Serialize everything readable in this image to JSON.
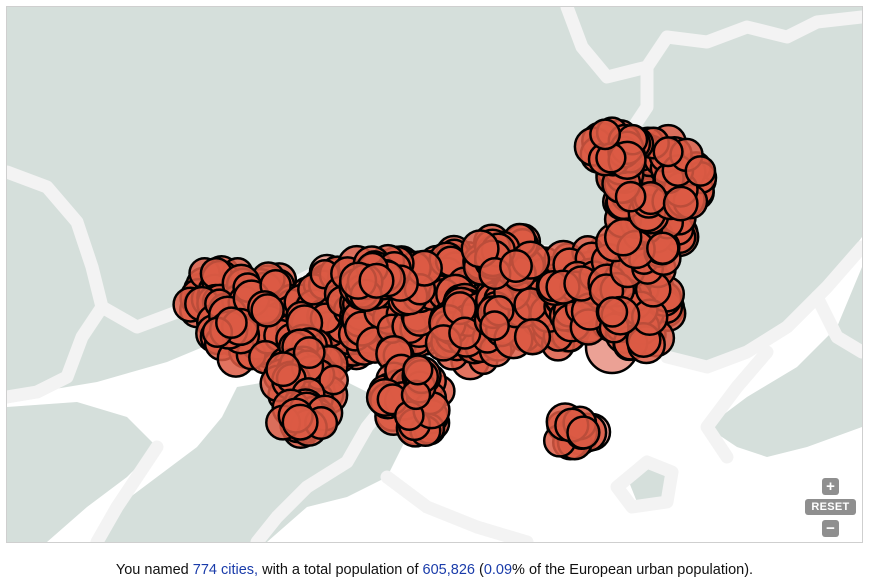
{
  "colors": {
    "land": "#d5dfdb",
    "sea": "#ffffff",
    "border": "#f3f3f3",
    "marker_fill": "#dc5a44",
    "marker_stroke": "#000000",
    "highlight_text": "#1a3caa"
  },
  "controls": {
    "zoom_in_symbol": "+",
    "reset_label": "RESET",
    "zoom_out_symbol": "−"
  },
  "summary": {
    "prefix": "You named ",
    "cities_link": "774 cities,",
    "mid": " with a total population of ",
    "population": "605,826",
    "paren_open": " (",
    "percent": "0.09",
    "suffix": "% of the European urban population)."
  }
}
